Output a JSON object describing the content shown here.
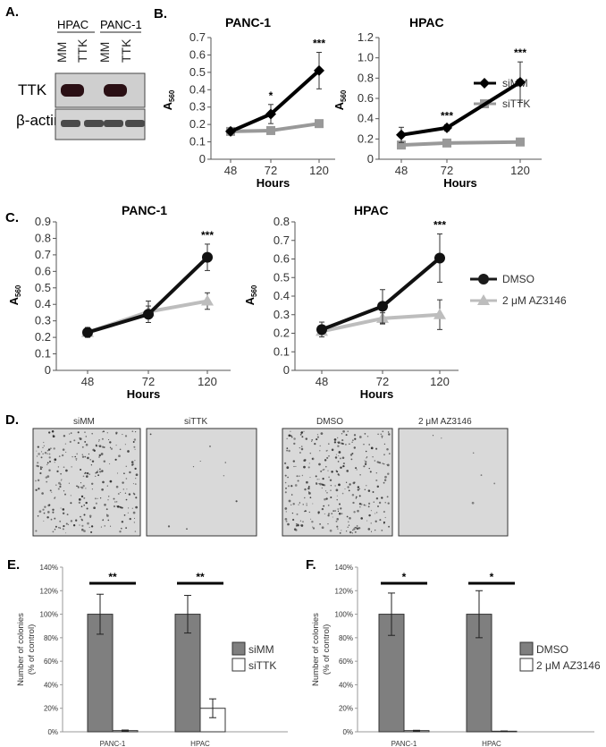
{
  "panels": {
    "a": "A.",
    "b": "B.",
    "c": "C.",
    "d": "D.",
    "e": "E.",
    "f": "F."
  },
  "western_blot": {
    "groups": [
      "HPAC",
      "PANC-1"
    ],
    "lanes": [
      "MM",
      "TTK",
      "MM",
      "TTK"
    ],
    "rows": [
      "TTK",
      "β-actin"
    ],
    "ttk_band_present": [
      1,
      0,
      1,
      0
    ],
    "actin_band_present": [
      1,
      1,
      1,
      1
    ]
  },
  "legend_b": {
    "items": [
      "siMM",
      "siTTK"
    ],
    "colors": [
      "#000000",
      "#999999"
    ]
  },
  "legend_c": {
    "items": [
      "DMSO",
      "2 μM AZ3146"
    ],
    "colors": [
      "#1a1a1a",
      "#bdbdbd"
    ]
  },
  "legend_e": {
    "items": [
      "siMM",
      "siTTK"
    ]
  },
  "legend_f": {
    "items": [
      "DMSO",
      "2 μM AZ3146"
    ]
  },
  "colony_images": {
    "labels": [
      "siMM",
      "siTTK",
      "DMSO",
      "2 μM AZ3146"
    ],
    "colony_density": [
      0.9,
      0.02,
      1.0,
      0.01
    ]
  },
  "chart_data": [
    {
      "id": "B1",
      "type": "line",
      "title": "PANC-1",
      "xlabel": "Hours",
      "ylabel": "A560",
      "x": [
        "48",
        "72",
        "120"
      ],
      "ylim": [
        0,
        0.7
      ],
      "yticks": [
        0,
        0.1,
        0.2,
        0.3,
        0.4,
        0.5,
        0.6,
        0.7
      ],
      "series": [
        {
          "name": "siMM",
          "values": [
            0.16,
            0.26,
            0.51
          ],
          "errors": [
            0.01,
            0.055,
            0.105
          ],
          "marker": "diamond"
        },
        {
          "name": "siTTK",
          "values": [
            0.16,
            0.165,
            0.205
          ],
          "errors": [
            0.01,
            0.015,
            0.005
          ],
          "marker": "square"
        }
      ],
      "significance": [
        "",
        "*",
        "***"
      ]
    },
    {
      "id": "B2",
      "type": "line",
      "title": "HPAC",
      "xlabel": "Hours",
      "ylabel": "A560",
      "x": [
        "48",
        "72",
        "120"
      ],
      "ylim": [
        0,
        1.2
      ],
      "yticks": [
        0,
        0.2,
        0.4,
        0.6,
        0.8,
        1.0,
        1.2
      ],
      "series": [
        {
          "name": "siMM",
          "values": [
            0.24,
            0.31,
            0.76
          ],
          "errors": [
            0.075,
            0.03,
            0.2
          ],
          "marker": "diamond"
        },
        {
          "name": "siTTK",
          "values": [
            0.14,
            0.16,
            0.17
          ],
          "errors": [
            0.015,
            0.01,
            0.005
          ],
          "marker": "square"
        }
      ],
      "significance": [
        "",
        "***",
        "***"
      ]
    },
    {
      "id": "C1",
      "type": "line",
      "title": "PANC-1",
      "xlabel": "Hours",
      "ylabel": "A560",
      "x": [
        "48",
        "72",
        "120"
      ],
      "ylim": [
        0,
        0.9
      ],
      "yticks": [
        0,
        0.1,
        0.2,
        0.3,
        0.4,
        0.5,
        0.6,
        0.7,
        0.8,
        0.9
      ],
      "series": [
        {
          "name": "DMSO",
          "values": [
            0.23,
            0.34,
            0.685
          ],
          "errors": [
            0.03,
            0.05,
            0.08
          ],
          "marker": "circle"
        },
        {
          "name": "2 μM AZ3146",
          "values": [
            0.23,
            0.355,
            0.42
          ],
          "errors": [
            0.025,
            0.065,
            0.05
          ],
          "marker": "triangle"
        }
      ],
      "significance": [
        "",
        "",
        "***"
      ]
    },
    {
      "id": "C2",
      "type": "line",
      "title": "HPAC",
      "xlabel": "Hours",
      "ylabel": "A560",
      "x": [
        "48",
        "72",
        "120"
      ],
      "ylim": [
        0,
        0.8
      ],
      "yticks": [
        0,
        0.1,
        0.2,
        0.3,
        0.4,
        0.5,
        0.6,
        0.7,
        0.8
      ],
      "series": [
        {
          "name": "DMSO",
          "values": [
            0.22,
            0.345,
            0.605
          ],
          "errors": [
            0.04,
            0.09,
            0.13
          ],
          "marker": "circle"
        },
        {
          "name": "2 μM AZ3146",
          "values": [
            0.21,
            0.28,
            0.3
          ],
          "errors": [
            0.02,
            0.03,
            0.08
          ],
          "marker": "triangle"
        }
      ],
      "significance": [
        "",
        "",
        "***"
      ]
    },
    {
      "id": "E",
      "type": "bar",
      "xlabel": "",
      "ylabel": "Number of colonies\n(% of control)",
      "categories": [
        "PANC-1",
        "HPAC"
      ],
      "ylim": [
        0,
        140
      ],
      "yticks": [
        "0%",
        "20%",
        "40%",
        "60%",
        "80%",
        "100%",
        "120%",
        "140%"
      ],
      "series": [
        {
          "name": "siMM",
          "values": [
            100,
            100
          ],
          "errors": [
            17,
            16
          ],
          "color": "#7f7f7f"
        },
        {
          "name": "siTTK",
          "values": [
            1,
            20
          ],
          "errors": [
            0.5,
            8
          ],
          "color": "#ffffff"
        }
      ],
      "significance": [
        "**",
        "**"
      ]
    },
    {
      "id": "F",
      "type": "bar",
      "xlabel": "",
      "ylabel": "Number of colonies\n(% of control)",
      "categories": [
        "PANC-1",
        "HPAC"
      ],
      "ylim": [
        0,
        140
      ],
      "yticks": [
        "0%",
        "20%",
        "40%",
        "60%",
        "80%",
        "100%",
        "120%",
        "140%"
      ],
      "series": [
        {
          "name": "DMSO",
          "values": [
            100,
            100
          ],
          "errors": [
            18,
            20
          ],
          "color": "#7f7f7f"
        },
        {
          "name": "2 μM AZ3146",
          "values": [
            1,
            0.5
          ],
          "errors": [
            0.3,
            0.2
          ],
          "color": "#ffffff"
        }
      ],
      "significance": [
        "*",
        "*"
      ]
    }
  ]
}
